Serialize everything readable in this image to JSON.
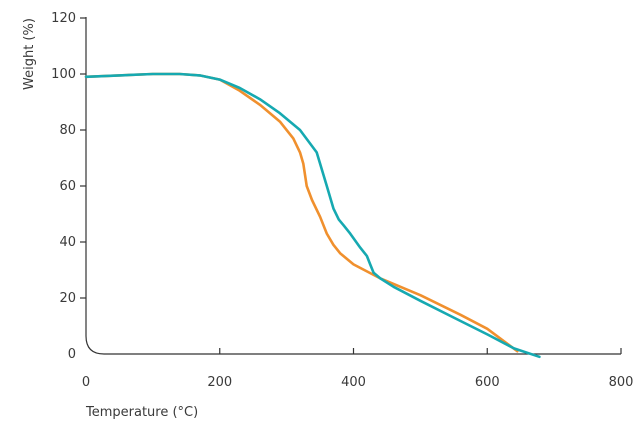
{
  "chart_data": {
    "type": "line",
    "title": "",
    "xlabel": "Temperature (°C)",
    "ylabel": "Weight (%)",
    "xlim": [
      0,
      800
    ],
    "ylim": [
      0,
      120
    ],
    "xticks": [
      0,
      200,
      400,
      600,
      800
    ],
    "yticks": [
      0,
      20,
      40,
      60,
      80,
      100,
      120
    ],
    "grid": false,
    "legend": "none",
    "series": [
      {
        "color": "#16a9b1",
        "x": [
          0,
          50,
          100,
          140,
          170,
          200,
          230,
          260,
          290,
          320,
          345,
          360,
          370,
          378,
          385,
          395,
          410,
          420,
          425,
          430,
          440,
          460,
          500,
          550,
          600,
          640,
          678
        ],
        "y": [
          99,
          99.5,
          100,
          100,
          99.5,
          98,
          95,
          91,
          86,
          80,
          72,
          60,
          52,
          48,
          46,
          43,
          38,
          35,
          32,
          29,
          27,
          24,
          19,
          13,
          7,
          2,
          -1
        ]
      },
      {
        "color": "#f0902e",
        "x": [
          0,
          50,
          100,
          140,
          170,
          200,
          230,
          260,
          290,
          310,
          320,
          325,
          330,
          338,
          350,
          360,
          370,
          380,
          400,
          440,
          500,
          560,
          600,
          645
        ],
        "y": [
          99,
          99.5,
          100,
          100,
          99.5,
          98,
          94,
          89,
          83,
          77,
          72,
          68,
          60,
          55,
          49,
          43,
          39,
          36,
          32,
          27,
          21,
          14,
          9,
          1
        ]
      }
    ]
  }
}
